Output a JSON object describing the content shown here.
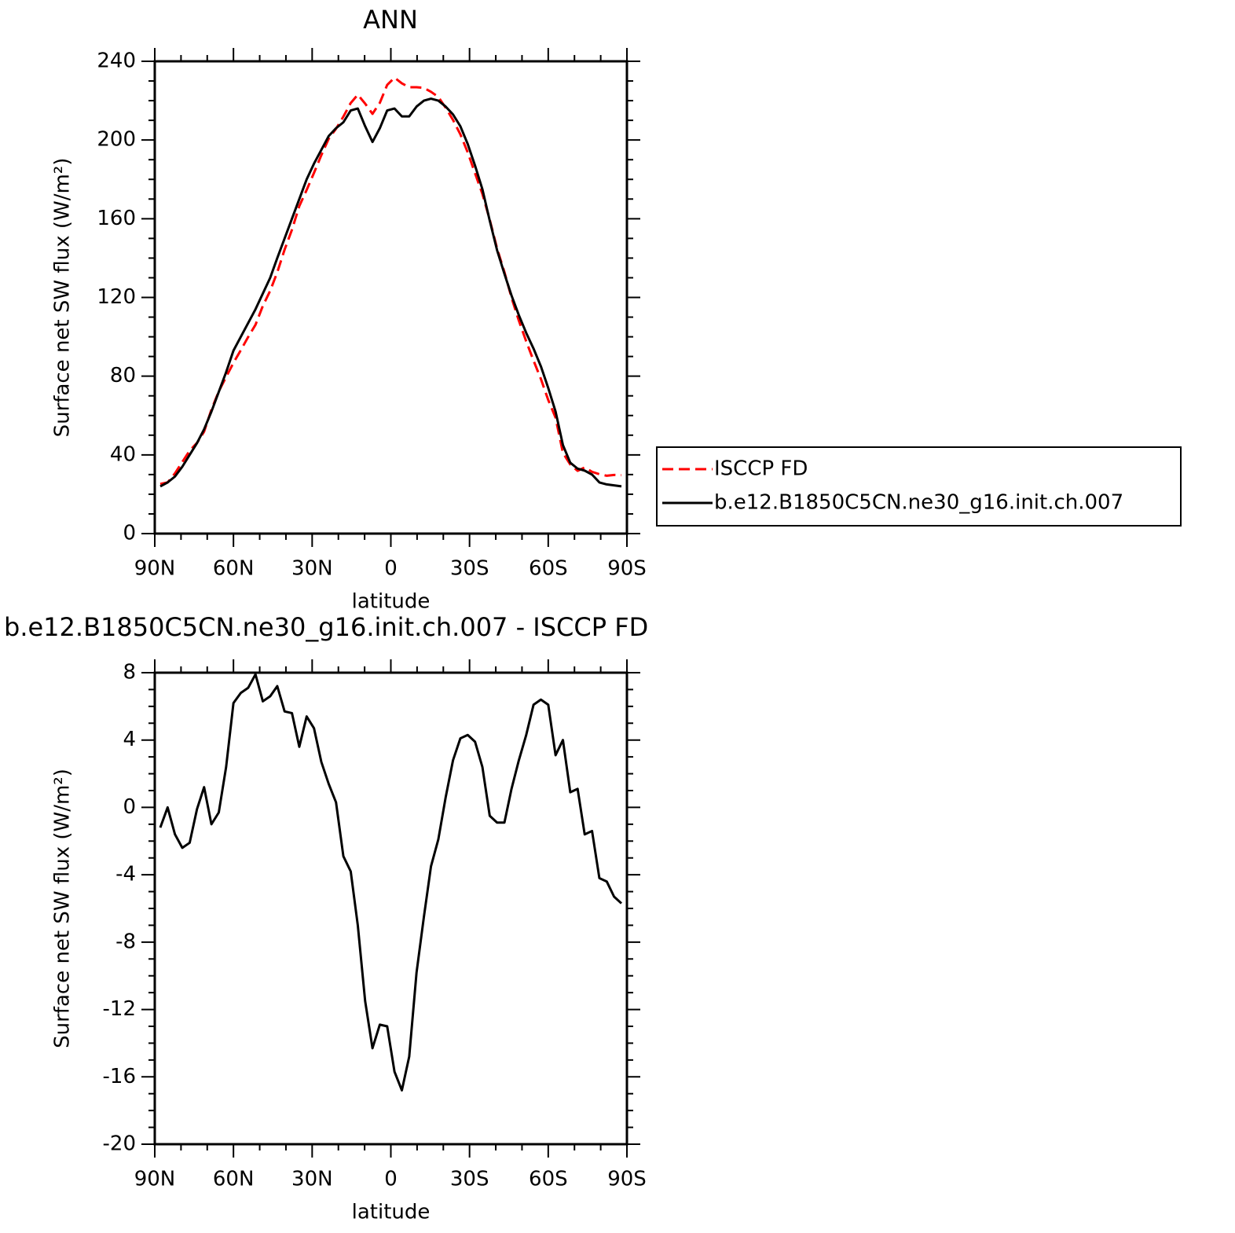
{
  "chart_data": [
    {
      "type": "line",
      "title": "ANN",
      "xlabel": "latitude",
      "ylabel": "Surface net SW flux (W/m²)",
      "x": [
        87.9,
        85.1,
        82.3,
        79.5,
        76.7,
        73.9,
        71.2,
        68.4,
        65.6,
        62.8,
        60.0,
        57.2,
        54.4,
        51.6,
        48.8,
        46.0,
        43.3,
        40.5,
        37.7,
        34.9,
        32.1,
        29.3,
        26.5,
        23.7,
        20.9,
        18.1,
        15.3,
        12.6,
        9.8,
        7.0,
        4.2,
        1.4,
        -1.4,
        -4.2,
        -7.0,
        -9.8,
        -12.6,
        -15.3,
        -18.1,
        -20.9,
        -23.7,
        -26.5,
        -29.3,
        -32.1,
        -34.9,
        -37.7,
        -40.5,
        -43.3,
        -46.0,
        -48.8,
        -51.6,
        -54.4,
        -57.2,
        -60.0,
        -62.8,
        -65.6,
        -68.4,
        -71.2,
        -73.9,
        -76.7,
        -79.5,
        -82.3,
        -85.1,
        -87.9
      ],
      "series": [
        {
          "name": "ISCCP FD",
          "color": "#ff0000",
          "dash": true,
          "values": [
            25.2,
            26,
            30.6,
            36.4,
            42.1,
            46.1,
            51.8,
            63,
            72.3,
            79.6,
            86.8,
            93.2,
            99.9,
            106.1,
            115.7,
            123.4,
            132.8,
            144.3,
            154.4,
            166.4,
            174.6,
            183.3,
            192.3,
            200.6,
            205.7,
            211.9,
            218.8,
            223,
            218.5,
            213.3,
            218.9,
            228,
            231.7,
            228.8,
            226.8,
            226.8,
            226.5,
            224.5,
            221.9,
            216.4,
            210.2,
            202.9,
            193.7,
            183.1,
            172.6,
            159.5,
            144.9,
            132.9,
            119.9,
            108.2,
            97.7,
            87.9,
            78.6,
            67.9,
            58.9,
            41,
            35.1,
            31.9,
            33.6,
            31.4,
            30.2,
            29.4,
            29.8,
            29.7
          ]
        },
        {
          "name": "b.e12.B1850C5CN.ne30_g16.init.ch.007",
          "color": "#000000",
          "dash": false,
          "values": [
            24,
            26,
            29,
            34,
            40,
            46,
            53,
            62,
            72,
            82,
            93,
            100,
            107,
            114,
            122,
            130,
            140,
            150,
            160,
            170,
            180,
            188,
            195,
            202,
            206,
            209,
            215,
            216,
            207,
            199,
            206,
            215,
            216,
            212,
            212,
            217,
            220,
            221,
            220,
            217,
            213,
            207,
            198,
            187,
            175,
            159,
            144,
            132,
            121,
            111,
            102,
            94,
            85,
            74,
            62,
            45,
            36,
            33,
            32,
            30,
            26,
            25,
            24.5,
            24
          ]
        }
      ],
      "xlim": [
        90,
        -90
      ],
      "xticks": [
        {
          "value": 90,
          "label": "90N"
        },
        {
          "value": 60,
          "label": "60N"
        },
        {
          "value": 30,
          "label": "30N"
        },
        0,
        {
          "value": -30,
          "label": "30S"
        },
        {
          "value": -60,
          "label": "60S"
        },
        {
          "value": -90,
          "label": "90S"
        }
      ],
      "xminorticks": [
        80,
        70,
        50,
        40,
        20,
        10,
        -10,
        -20,
        -40,
        -50,
        -70,
        -80
      ],
      "ylim": [
        0,
        240
      ],
      "yticks": [
        0,
        40,
        80,
        120,
        160,
        200,
        240
      ],
      "yminorticks": [
        10,
        20,
        30,
        50,
        60,
        70,
        90,
        100,
        110,
        130,
        140,
        150,
        170,
        180,
        190,
        210,
        220,
        230
      ],
      "legend": true
    },
    {
      "type": "line",
      "title": "b.e12.B1850C5CN.ne30_g16.init.ch.007 - ISCCP FD",
      "xlabel": "latitude",
      "ylabel": "Surface net SW flux (W/m²)",
      "x": [
        87.9,
        85.1,
        82.3,
        79.5,
        76.7,
        73.9,
        71.2,
        68.4,
        65.6,
        62.8,
        60.0,
        57.2,
        54.4,
        51.6,
        48.8,
        46.0,
        43.3,
        40.5,
        37.7,
        34.9,
        32.1,
        29.3,
        26.5,
        23.7,
        20.9,
        18.1,
        15.3,
        12.6,
        9.8,
        7.0,
        4.2,
        1.4,
        -1.4,
        -4.2,
        -7.0,
        -9.8,
        -12.6,
        -15.3,
        -18.1,
        -20.9,
        -23.7,
        -26.5,
        -29.3,
        -32.1,
        -34.9,
        -37.7,
        -40.5,
        -43.3,
        -46.0,
        -48.8,
        -51.6,
        -54.4,
        -57.2,
        -60.0,
        -62.8,
        -65.6,
        -68.4,
        -71.2,
        -73.9,
        -76.7,
        -79.5,
        -82.3,
        -85.1,
        -87.9
      ],
      "series": [
        {
          "color": "#000000",
          "dash": false,
          "values": [
            -1.2,
            0.0,
            -1.6,
            -2.4,
            -2.1,
            -0.1,
            1.2,
            -1.0,
            -0.3,
            2.4,
            6.2,
            6.8,
            7.1,
            7.9,
            6.3,
            6.6,
            7.2,
            5.7,
            5.6,
            3.6,
            5.4,
            4.7,
            2.7,
            1.4,
            0.3,
            -2.9,
            -3.8,
            -7.0,
            -11.5,
            -14.3,
            -12.9,
            -13.0,
            -15.7,
            -16.8,
            -14.8,
            -9.8,
            -6.5,
            -3.5,
            -1.9,
            0.6,
            2.8,
            4.1,
            4.3,
            3.9,
            2.4,
            -0.5,
            -0.9,
            -0.9,
            1.1,
            2.8,
            4.3,
            6.1,
            6.4,
            6.1,
            3.1,
            4.0,
            0.9,
            1.1,
            -1.6,
            -1.4,
            -4.2,
            -4.4,
            -5.3,
            -5.7
          ]
        }
      ],
      "xlim": [
        90,
        -90
      ],
      "xticks": [
        {
          "value": 90,
          "label": "90N"
        },
        {
          "value": 60,
          "label": "60N"
        },
        {
          "value": 30,
          "label": "30N"
        },
        0,
        {
          "value": -30,
          "label": "30S"
        },
        {
          "value": -60,
          "label": "60S"
        },
        {
          "value": -90,
          "label": "90S"
        }
      ],
      "xminorticks": [
        80,
        70,
        50,
        40,
        20,
        10,
        -10,
        -20,
        -40,
        -50,
        -70,
        -80
      ],
      "ylim": [
        -20,
        8
      ],
      "yticks": [
        -20,
        -16,
        -12,
        -8,
        -4,
        0,
        4,
        8
      ],
      "yminorticks": [
        -19,
        -18,
        -17,
        -15,
        -14,
        -13,
        -11,
        -10,
        -9,
        -7,
        -6,
        -5,
        -3,
        -2,
        -1,
        1,
        2,
        3,
        5,
        6,
        7
      ],
      "legend": false
    }
  ]
}
